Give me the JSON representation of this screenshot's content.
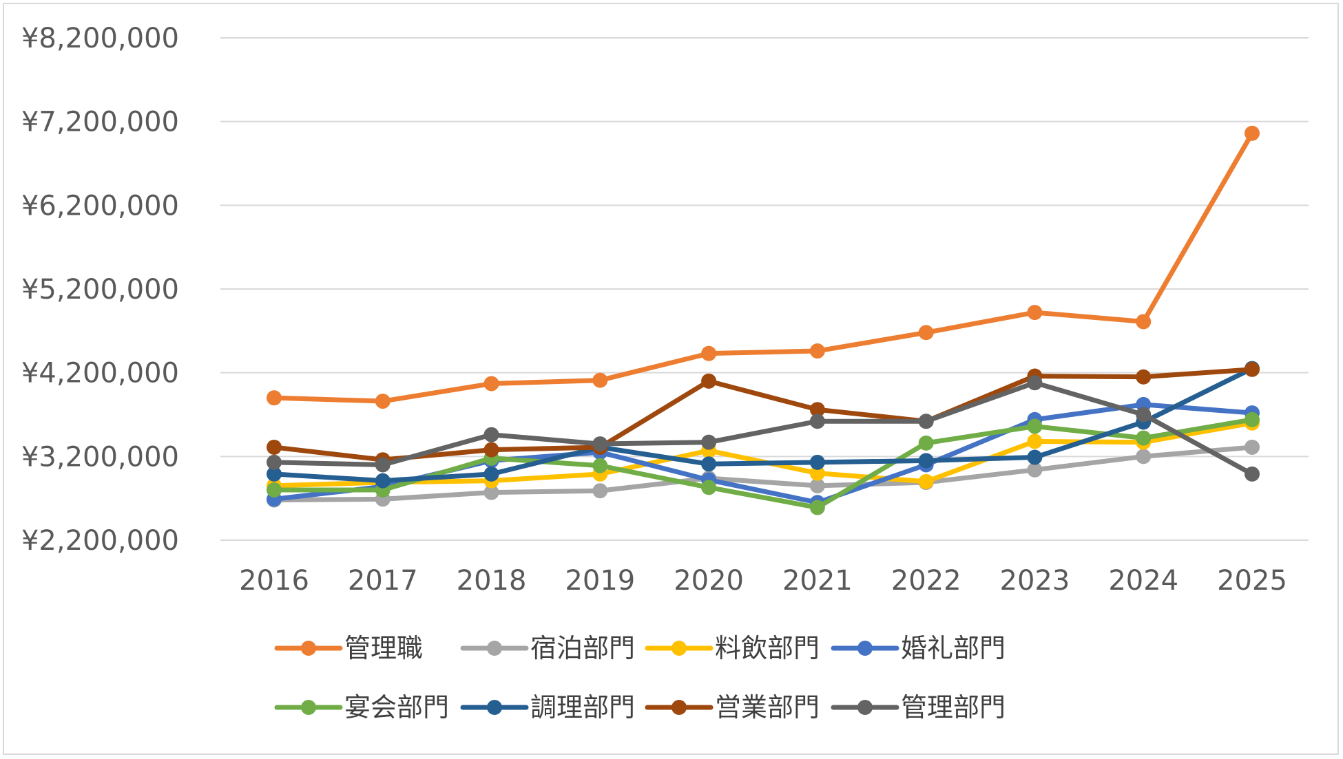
{
  "chart_data": {
    "type": "line",
    "title": "",
    "xlabel": "",
    "ylabel": "",
    "x": [
      "2016",
      "2017",
      "2018",
      "2019",
      "2020",
      "2021",
      "2022",
      "2023",
      "2024",
      "2025"
    ],
    "y_tick_values": [
      2200000,
      3200000,
      4200000,
      5200000,
      6200000,
      7200000,
      8200000
    ],
    "y_tick_labels": [
      "¥2,200,000",
      "¥3,200,000",
      "¥4,200,000",
      "¥5,200,000",
      "¥6,200,000",
      "¥7,200,000",
      "¥8,200,000"
    ],
    "ylim": [
      2200000,
      8200000
    ],
    "grid": true,
    "legend_position": "bottom",
    "series": [
      {
        "name": "管理職",
        "color": "#ED7D31",
        "values": [
          3900000,
          3860000,
          4070000,
          4110000,
          4430000,
          4460000,
          4680000,
          4920000,
          4810000,
          7060000
        ]
      },
      {
        "name": "宿泊部門",
        "color": "#A5A5A5",
        "values": [
          2680000,
          2690000,
          2770000,
          2790000,
          2940000,
          2850000,
          2890000,
          3040000,
          3200000,
          3310000
        ]
      },
      {
        "name": "料飲部門",
        "color": "#FFC000",
        "values": [
          2850000,
          2890000,
          2910000,
          2990000,
          3270000,
          3000000,
          2900000,
          3380000,
          3370000,
          3600000
        ]
      },
      {
        "name": "婚礼部門",
        "color": "#4472C4",
        "values": [
          2690000,
          2840000,
          3150000,
          3250000,
          2920000,
          2650000,
          3100000,
          3640000,
          3820000,
          3720000
        ]
      },
      {
        "name": "宴会部門",
        "color": "#70AD47",
        "values": [
          2800000,
          2800000,
          3180000,
          3090000,
          2830000,
          2590000,
          3360000,
          3560000,
          3420000,
          3640000
        ]
      },
      {
        "name": "調理部門",
        "color": "#255E91",
        "values": [
          2990000,
          2910000,
          2990000,
          3310000,
          3110000,
          3130000,
          3150000,
          3190000,
          3610000,
          4250000
        ]
      },
      {
        "name": "営業部門",
        "color": "#9E480E",
        "values": [
          3310000,
          3160000,
          3280000,
          3310000,
          4100000,
          3760000,
          3620000,
          4160000,
          4150000,
          4240000
        ]
      },
      {
        "name": "管理部門",
        "color": "#636363",
        "values": [
          3130000,
          3100000,
          3460000,
          3350000,
          3370000,
          3620000,
          3620000,
          4080000,
          3700000,
          2990000
        ]
      }
    ]
  }
}
